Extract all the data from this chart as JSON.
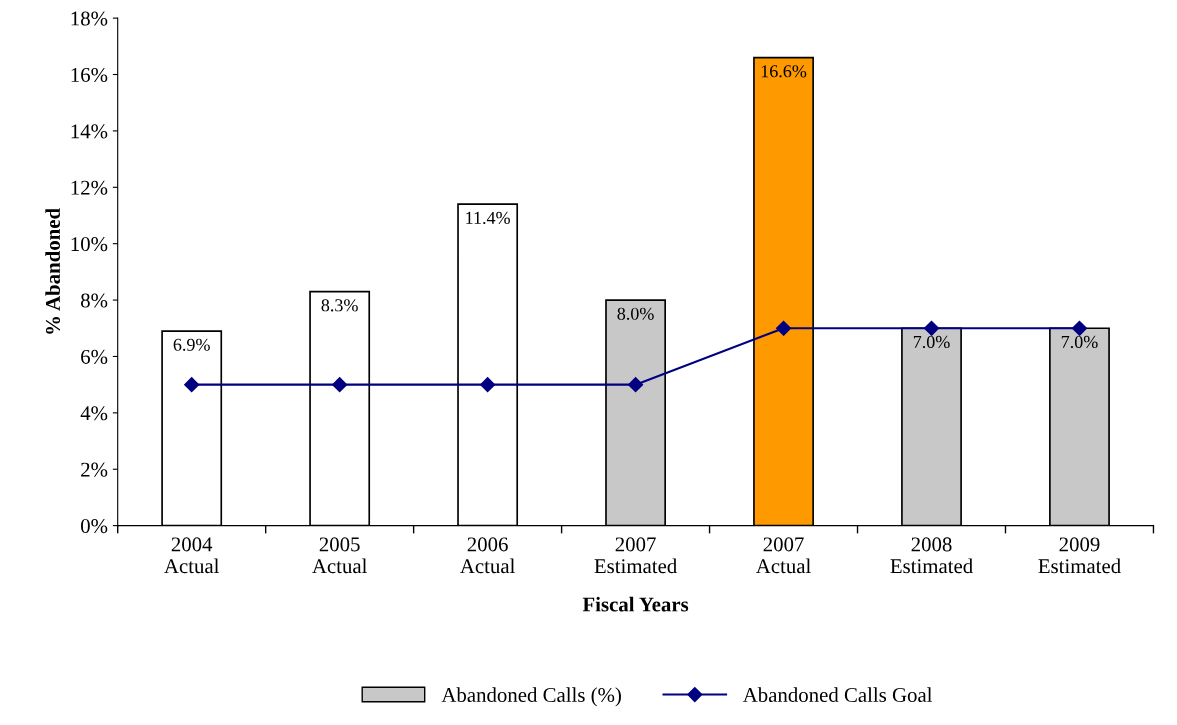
{
  "chart_data": {
    "type": "bar",
    "xlabel": "Fiscal Years",
    "ylabel": "% Abandoned",
    "categories": [
      "2004\nActual",
      "2005\nActual",
      "2006\nActual",
      "2007\nEstimated",
      "2007\nActual",
      "2008\nEstimated",
      "2009\nEstimated"
    ],
    "series": [
      {
        "name": "Abandoned Calls (%)",
        "color": "#c8c8c8",
        "colors": [
          "#ffffff",
          "#ffffff",
          "#ffffff",
          "#c8c8c8",
          "#ff9900",
          "#c8c8c8",
          "#c8c8c8"
        ],
        "values": [
          6.9,
          8.3,
          11.4,
          8.0,
          16.6,
          7.0,
          7.0
        ],
        "value_labels": [
          "6.9%",
          "8.3%",
          "11.4%",
          "8.0%",
          "16.6%",
          "7.0%",
          "7.0%"
        ]
      },
      {
        "name": "Abandoned Calls Goal",
        "type": "line",
        "color": "#000080",
        "marker": "diamond",
        "values": [
          5,
          5,
          5,
          5,
          7,
          7,
          7
        ]
      }
    ],
    "ylim": [
      0,
      18
    ],
    "yticks": [
      {
        "value": 0,
        "label": "0%"
      },
      {
        "value": 2,
        "label": "2%"
      },
      {
        "value": 4,
        "label": "4%"
      },
      {
        "value": 6,
        "label": "6%"
      },
      {
        "value": 8,
        "label": "8%"
      },
      {
        "value": 10,
        "label": "10%"
      },
      {
        "value": 12,
        "label": "12%"
      },
      {
        "value": 14,
        "label": "14%"
      },
      {
        "value": 16,
        "label": "16%"
      },
      {
        "value": 18,
        "label": "18%"
      }
    ],
    "grid": false,
    "legend": "bottom"
  }
}
